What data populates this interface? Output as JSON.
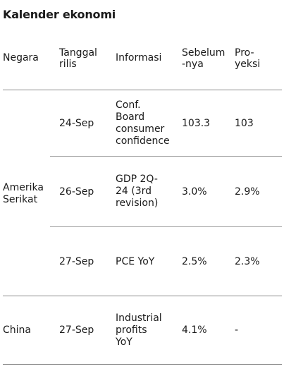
{
  "title": "Kalender ekonomi",
  "headers": {
    "negara": "Negara",
    "tanggal": "Tanggal\nrilis",
    "informasi": "Informasi",
    "sebelumnya": "Sebelum\n-nya",
    "proyeksi": "Pro-\nyeksi"
  },
  "groups": [
    {
      "country": "Amerika\nSerikat",
      "rows": [
        {
          "date": "24-Sep",
          "info": "Conf.\nBoard\nconsumer\nconfidence",
          "prev": "103.3",
          "proj": "103"
        },
        {
          "date": "26-Sep",
          "info": "GDP 2Q-\n24 (3rd\nrevision)",
          "prev": "3.0%",
          "proj": "2.9%"
        },
        {
          "date": "27-Sep",
          "info": "PCE YoY",
          "prev": "2.5%",
          "proj": "2.3%"
        }
      ]
    },
    {
      "country": "China",
      "rows": [
        {
          "date": "27-Sep",
          "info": "Industrial\nprofits\nYoY",
          "prev": "4.1%",
          "proj": "-"
        }
      ]
    }
  ]
}
